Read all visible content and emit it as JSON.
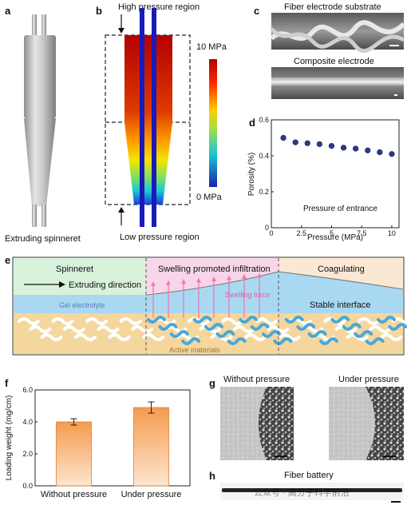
{
  "panels": {
    "a": {
      "letter": "a",
      "caption": "Extruding spinneret"
    },
    "b": {
      "letter": "b",
      "top_label": "High pressure region",
      "bottom_label": "Low pressure region",
      "scale_max": "10 MPa",
      "scale_min": "0 MPa"
    },
    "c": {
      "letter": "c",
      "title_top": "Fiber electrode substrate",
      "title_bottom": "Composite electrode"
    },
    "d": {
      "letter": "d"
    },
    "e": {
      "letter": "e",
      "spinneret": "Spinneret",
      "direction": "Extruding direction",
      "swelling": "Swelling promoted infiltration",
      "coagulating": "Coagulating",
      "gel": "Gel electrolyte",
      "swelling_force": "Swelling force",
      "stable": "Stable interface",
      "active": "Active materials"
    },
    "f": {
      "letter": "f"
    },
    "g": {
      "letter": "g",
      "left_title": "Without pressure",
      "right_title": "Under pressure"
    },
    "h": {
      "letter": "h",
      "title": "Fiber battery"
    }
  },
  "watermark": "公众号 · 高分子科学前沿",
  "chart_data": [
    {
      "id": "d",
      "type": "scatter",
      "x": [
        1,
        2,
        3,
        4,
        5,
        6,
        7,
        8,
        9,
        10
      ],
      "y": [
        0.5,
        0.475,
        0.47,
        0.465,
        0.455,
        0.445,
        0.44,
        0.43,
        0.42,
        0.41
      ],
      "xlabel": "Pressure (MPa)",
      "ylabel": "Porosity (%)",
      "annotation": "Pressure of entrance",
      "xlim": [
        0,
        10.6
      ],
      "ylim": [
        0,
        0.6
      ],
      "xticks": [
        0,
        2.5,
        5,
        7.5,
        10
      ],
      "xtick_labels": [
        "0",
        "2.5",
        "5",
        "7.5",
        "10"
      ],
      "yticks": [
        0,
        0.2,
        0.4,
        0.6
      ],
      "ytick_labels": [
        "0",
        "0.2",
        "0.4",
        "0.6"
      ],
      "color": "#2a3a8c"
    },
    {
      "id": "f",
      "type": "bar",
      "categories": [
        "Without pressure",
        "Under pressure"
      ],
      "values": [
        4.0,
        4.9
      ],
      "errors": [
        0.2,
        0.35
      ],
      "ylabel": "Loading weight (mg/cm)",
      "ylim": [
        0,
        6
      ],
      "yticks": [
        0,
        2,
        4,
        6
      ],
      "ytick_labels": [
        "0.0",
        "2.0",
        "4.0",
        "6.0"
      ],
      "color": "#f7a35c"
    }
  ]
}
